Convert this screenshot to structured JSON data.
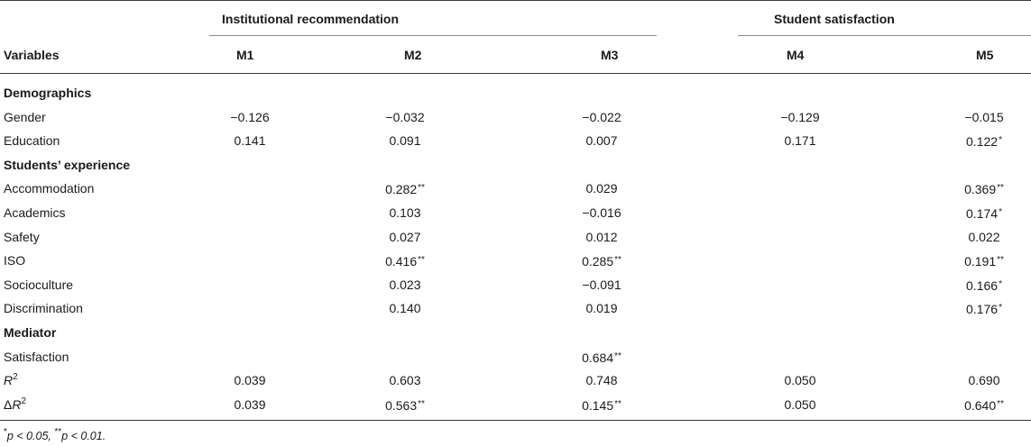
{
  "table": {
    "group_headers": [
      {
        "label": "Institutional recommendation"
      },
      {
        "label": "Student satisfaction"
      }
    ],
    "columns": [
      "Variables",
      "M1",
      "M2",
      "M3",
      "M4",
      "M5"
    ],
    "rows": [
      {
        "type": "section",
        "label": "Demographics"
      },
      {
        "type": "data",
        "label": "Gender",
        "values": [
          "−0.126",
          "−0.032",
          "−0.022",
          "−0.129",
          "−0.015"
        ],
        "marks": [
          "",
          "",
          "",
          "",
          ""
        ]
      },
      {
        "type": "data",
        "label": "Education",
        "values": [
          "0.141",
          "0.091",
          "0.007",
          "0.171",
          "0.122"
        ],
        "marks": [
          "",
          "",
          "",
          "",
          "*"
        ]
      },
      {
        "type": "section",
        "label": "Students’ experience"
      },
      {
        "type": "data",
        "label": "Accommodation",
        "values": [
          "",
          "0.282",
          "0.029",
          "",
          "0.369"
        ],
        "marks": [
          "",
          "**",
          "",
          "",
          "**"
        ]
      },
      {
        "type": "data",
        "label": "Academics",
        "values": [
          "",
          "0.103",
          "−0.016",
          "",
          "0.174"
        ],
        "marks": [
          "",
          "",
          "",
          "",
          "*"
        ]
      },
      {
        "type": "data",
        "label": "Safety",
        "values": [
          "",
          "0.027",
          "0.012",
          "",
          "0.022"
        ],
        "marks": [
          "",
          "",
          "",
          "",
          ""
        ]
      },
      {
        "type": "data",
        "label": "ISO",
        "values": [
          "",
          "0.416",
          "0.285",
          "",
          "0.191"
        ],
        "marks": [
          "",
          "**",
          "**",
          "",
          "**"
        ]
      },
      {
        "type": "data",
        "label": "Socioculture",
        "values": [
          "",
          "0.023",
          "−0.091",
          "",
          "0.166"
        ],
        "marks": [
          "",
          "",
          "",
          "",
          "*"
        ]
      },
      {
        "type": "data",
        "label": "Discrimination",
        "values": [
          "",
          "0.140",
          "0.019",
          "",
          "0.176"
        ],
        "marks": [
          "",
          "",
          "",
          "",
          "*"
        ]
      },
      {
        "type": "section",
        "label": "Mediator"
      },
      {
        "type": "data",
        "label": "Satisfaction",
        "values": [
          "",
          "",
          "0.684",
          "",
          ""
        ],
        "marks": [
          "",
          "",
          "**",
          "",
          ""
        ]
      },
      {
        "type": "rsq",
        "prefix": "",
        "label": "R",
        "values": [
          "0.039",
          "0.603",
          "0.748",
          "0.050",
          "0.690"
        ],
        "marks": [
          "",
          "",
          "",
          "",
          ""
        ]
      },
      {
        "type": "rsq",
        "prefix": "Δ",
        "label": "R",
        "values": [
          "0.039",
          "0.563",
          "0.145",
          "0.050",
          "0.640"
        ],
        "marks": [
          "",
          "**",
          "**",
          "",
          "**"
        ]
      }
    ],
    "superscript": "2",
    "footnote": {
      "star1": "*",
      "text1": "p < 0.05, ",
      "star2": "**",
      "text2": "p < 0.01."
    }
  }
}
